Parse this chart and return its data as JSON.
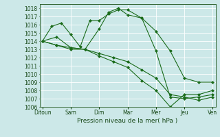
{
  "xlabel": "Pression niveau de la mer( hPa )",
  "xtick_labels": [
    "Ditoun",
    "Sam",
    "Dim",
    "Mar",
    "Mer",
    "Jeu",
    "Ven"
  ],
  "xtick_positions": [
    0,
    1,
    2,
    3,
    4,
    5,
    6
  ],
  "ylim": [
    1006,
    1018.5
  ],
  "yticks": [
    1006,
    1007,
    1008,
    1009,
    1010,
    1011,
    1012,
    1013,
    1014,
    1015,
    1016,
    1017,
    1018
  ],
  "background_color": "#cce8e8",
  "grid_color": "#ffffff",
  "line_color": "#1a6b1a",
  "series": [
    {
      "x": [
        0,
        0.33,
        0.67,
        1.0,
        1.33,
        1.67,
        2.0,
        2.33,
        2.67,
        3.0,
        3.5,
        4.0,
        4.5,
        5.0,
        5.5,
        6.0
      ],
      "y": [
        1014,
        1015.8,
        1016.2,
        1014.8,
        1013.3,
        1016.5,
        1016.5,
        1017.3,
        1017.8,
        1017.8,
        1016.8,
        1015.2,
        1012.8,
        1009.5,
        1009.0,
        1009.0
      ]
    },
    {
      "x": [
        0,
        0.5,
        1.0,
        1.5,
        2.0,
        2.33,
        2.67,
        3.0,
        3.5,
        4.0,
        4.5,
        5.0,
        5.5,
        6.0
      ],
      "y": [
        1014,
        1014.5,
        1013.2,
        1013.0,
        1015.5,
        1017.5,
        1018.0,
        1017.2,
        1016.8,
        1012.8,
        1007.2,
        1007.0,
        1007.2,
        1007.5
      ]
    },
    {
      "x": [
        0,
        0.5,
        1.0,
        1.5,
        2.0,
        2.5,
        3.0,
        3.5,
        4.0,
        4.5,
        5.0,
        5.5,
        6.0
      ],
      "y": [
        1014,
        1013.5,
        1013.2,
        1013.0,
        1012.5,
        1012.0,
        1011.5,
        1010.5,
        1009.5,
        1007.5,
        1007.2,
        1006.8,
        1007.2
      ]
    },
    {
      "x": [
        0,
        0.5,
        1.0,
        1.5,
        2.0,
        2.5,
        3.0,
        3.5,
        4.0,
        4.5,
        5.0,
        5.5,
        6.0
      ],
      "y": [
        1014,
        1013.5,
        1013.0,
        1013.0,
        1012.2,
        1011.5,
        1010.8,
        1009.2,
        1008.0,
        1006.0,
        1007.5,
        1007.5,
        1008.0
      ]
    }
  ]
}
